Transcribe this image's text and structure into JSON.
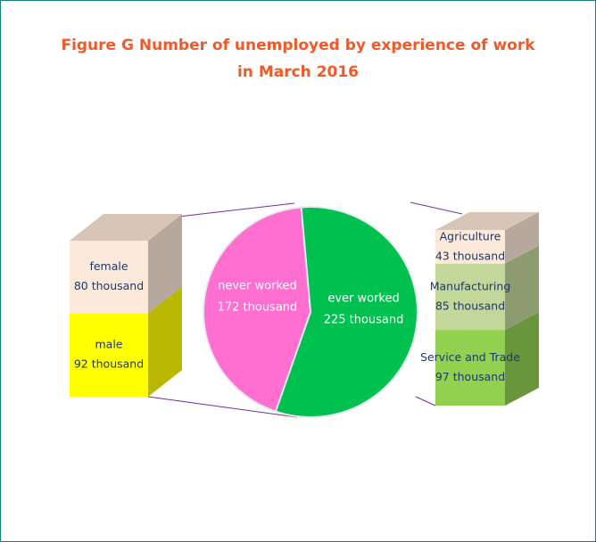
{
  "title": "Figure G Number of unemployed by experience of work\nin March 2016",
  "chart_data": [
    {
      "type": "bar",
      "stacked": true,
      "categories": [
        "male",
        "female"
      ],
      "values": [
        92,
        80
      ],
      "value_labels": [
        "92 thousand",
        "80 thousand"
      ],
      "colors": [
        "#ffff00",
        "#fde9d9"
      ]
    },
    {
      "type": "pie",
      "categories": [
        "never worked",
        "ever worked"
      ],
      "values": [
        172,
        225
      ],
      "value_labels": [
        "172 thousand",
        "225 thousand"
      ],
      "colors": [
        "#ff6fd0",
        "#00c050"
      ]
    },
    {
      "type": "bar",
      "stacked": true,
      "categories": [
        "Service and Trade",
        "Manufacturing",
        "Agriculture"
      ],
      "values": [
        97,
        85,
        43
      ],
      "value_labels": [
        "97 thousand",
        "85 thousand",
        "43 thousand"
      ],
      "colors": [
        "#92d050",
        "#c4d79b",
        "#fde9d9"
      ]
    }
  ]
}
